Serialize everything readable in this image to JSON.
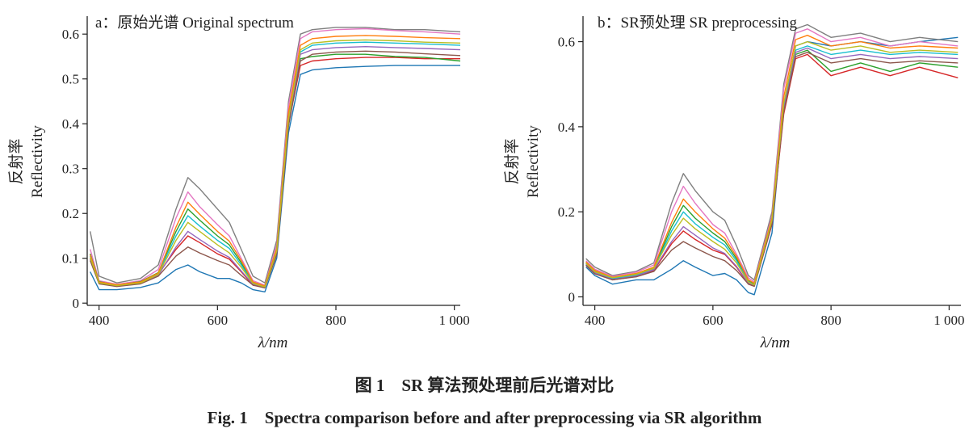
{
  "figure": {
    "caption_cn": "图 1　SR 算法预处理前后光谱对比",
    "caption_en": "Fig. 1　Spectra comparison before and after preprocessing via SR algorithm"
  },
  "chart_data": [
    {
      "type": "line",
      "title": "a：原始光谱 Original spectrum",
      "xlabel": "λ/nm",
      "ylabel_cn": "反射率",
      "ylabel_en": "Reflectivity",
      "xlim": [
        380,
        1010
      ],
      "ylim": [
        -0.005,
        0.64
      ],
      "xticks": [
        400,
        600,
        800,
        1000
      ],
      "xtick_labels": [
        "400",
        "600",
        "800",
        "1 000"
      ],
      "yticks": [
        0,
        0.1,
        0.2,
        0.3,
        0.4,
        0.5,
        0.6
      ],
      "ytick_labels": [
        "0",
        "0.1",
        "0.2",
        "0.3",
        "0.4",
        "0.5",
        "0.6"
      ],
      "grid": false,
      "series_count": 40,
      "x": [
        385,
        400,
        430,
        470,
        500,
        530,
        550,
        570,
        600,
        620,
        640,
        660,
        680,
        700,
        720,
        740,
        760,
        800,
        850,
        900,
        950,
        1010
      ],
      "series": [
        {
          "color": "#1f77b4",
          "values": [
            0.07,
            0.03,
            0.03,
            0.035,
            0.045,
            0.075,
            0.085,
            0.07,
            0.055,
            0.055,
            0.045,
            0.03,
            0.025,
            0.1,
            0.38,
            0.51,
            0.52,
            0.525,
            0.528,
            0.53,
            0.53,
            0.53
          ]
        },
        {
          "color": "#7f7f7f",
          "values": [
            0.16,
            0.06,
            0.045,
            0.055,
            0.085,
            0.21,
            0.28,
            0.255,
            0.21,
            0.18,
            0.12,
            0.06,
            0.045,
            0.14,
            0.45,
            0.6,
            0.61,
            0.615,
            0.615,
            0.61,
            0.61,
            0.605
          ]
        },
        {
          "color": "#e377c2",
          "values": [
            0.12,
            0.05,
            0.042,
            0.05,
            0.075,
            0.19,
            0.248,
            0.215,
            0.175,
            0.15,
            0.1,
            0.05,
            0.04,
            0.13,
            0.44,
            0.59,
            0.605,
            0.61,
            0.612,
            0.608,
            0.605,
            0.6
          ]
        },
        {
          "color": "#d62728",
          "values": [
            0.1,
            0.045,
            0.038,
            0.045,
            0.065,
            0.12,
            0.15,
            0.135,
            0.11,
            0.098,
            0.07,
            0.04,
            0.035,
            0.11,
            0.4,
            0.53,
            0.54,
            0.545,
            0.548,
            0.548,
            0.545,
            0.545
          ]
        },
        {
          "color": "#2ca02c",
          "values": [
            0.11,
            0.048,
            0.04,
            0.048,
            0.068,
            0.16,
            0.21,
            0.185,
            0.15,
            0.13,
            0.09,
            0.045,
            0.038,
            0.12,
            0.42,
            0.545,
            0.55,
            0.555,
            0.555,
            0.55,
            0.548,
            0.54
          ]
        },
        {
          "color": "#17becf",
          "values": [
            0.105,
            0.046,
            0.04,
            0.046,
            0.066,
            0.15,
            0.195,
            0.172,
            0.14,
            0.122,
            0.085,
            0.045,
            0.036,
            0.118,
            0.415,
            0.56,
            0.575,
            0.58,
            0.582,
            0.58,
            0.578,
            0.575
          ]
        },
        {
          "color": "#ff7f0e",
          "values": [
            0.108,
            0.047,
            0.041,
            0.047,
            0.067,
            0.17,
            0.225,
            0.198,
            0.16,
            0.138,
            0.095,
            0.047,
            0.038,
            0.122,
            0.425,
            0.575,
            0.59,
            0.595,
            0.597,
            0.595,
            0.592,
            0.59
          ]
        },
        {
          "color": "#9467bd",
          "values": [
            0.098,
            0.044,
            0.038,
            0.044,
            0.062,
            0.125,
            0.16,
            0.142,
            0.116,
            0.102,
            0.072,
            0.042,
            0.035,
            0.112,
            0.405,
            0.555,
            0.565,
            0.57,
            0.572,
            0.57,
            0.568,
            0.565
          ]
        },
        {
          "color": "#8c564b",
          "values": [
            0.095,
            0.043,
            0.037,
            0.043,
            0.06,
            0.105,
            0.125,
            0.112,
            0.095,
            0.085,
            0.062,
            0.04,
            0.034,
            0.108,
            0.395,
            0.54,
            0.555,
            0.56,
            0.562,
            0.56,
            0.556,
            0.552
          ]
        },
        {
          "color": "#bcbd22",
          "values": [
            0.102,
            0.045,
            0.039,
            0.045,
            0.064,
            0.14,
            0.18,
            0.16,
            0.13,
            0.112,
            0.08,
            0.044,
            0.036,
            0.116,
            0.41,
            0.565,
            0.58,
            0.585,
            0.587,
            0.585,
            0.582,
            0.58
          ]
        }
      ]
    },
    {
      "type": "line",
      "title": "b：SR预处理 SR preprocessing",
      "xlabel": "λ/nm",
      "ylabel_cn": "反射率",
      "ylabel_en": "Reflectivity",
      "xlim": [
        380,
        1020
      ],
      "ylim": [
        -0.02,
        0.66
      ],
      "xticks": [
        400,
        600,
        800,
        1000
      ],
      "xtick_labels": [
        "400",
        "600",
        "800",
        "1 000"
      ],
      "yticks": [
        0,
        0.2,
        0.4,
        0.6
      ],
      "ytick_labels": [
        "0",
        "0.2",
        "0.4",
        "0.6"
      ],
      "grid": false,
      "series_count": 40,
      "x": [
        385,
        400,
        430,
        470,
        500,
        530,
        550,
        570,
        600,
        620,
        640,
        660,
        670,
        700,
        720,
        740,
        760,
        800,
        850,
        900,
        950,
        1015
      ],
      "series": [
        {
          "color": "#1f77b4",
          "values": [
            0.07,
            0.05,
            0.03,
            0.04,
            0.04,
            0.065,
            0.085,
            0.07,
            0.05,
            0.055,
            0.04,
            0.01,
            0.005,
            0.15,
            0.45,
            0.59,
            0.6,
            0.59,
            0.6,
            0.59,
            0.6,
            0.61
          ]
        },
        {
          "color": "#7f7f7f",
          "values": [
            0.09,
            0.07,
            0.05,
            0.06,
            0.08,
            0.22,
            0.29,
            0.25,
            0.2,
            0.18,
            0.12,
            0.05,
            0.04,
            0.2,
            0.5,
            0.63,
            0.64,
            0.61,
            0.62,
            0.6,
            0.61,
            0.6
          ]
        },
        {
          "color": "#e377c2",
          "values": [
            0.085,
            0.065,
            0.048,
            0.058,
            0.075,
            0.2,
            0.26,
            0.22,
            0.17,
            0.15,
            0.1,
            0.045,
            0.035,
            0.19,
            0.49,
            0.62,
            0.63,
            0.6,
            0.61,
            0.59,
            0.6,
            0.59
          ]
        },
        {
          "color": "#d62728",
          "values": [
            0.075,
            0.055,
            0.04,
            0.048,
            0.062,
            0.125,
            0.155,
            0.135,
            0.11,
            0.1,
            0.07,
            0.03,
            0.025,
            0.17,
            0.43,
            0.56,
            0.57,
            0.52,
            0.54,
            0.52,
            0.54,
            0.515
          ]
        },
        {
          "color": "#2ca02c",
          "values": [
            0.08,
            0.06,
            0.044,
            0.052,
            0.068,
            0.165,
            0.215,
            0.185,
            0.15,
            0.13,
            0.09,
            0.038,
            0.03,
            0.18,
            0.44,
            0.57,
            0.58,
            0.53,
            0.55,
            0.53,
            0.55,
            0.54
          ]
        },
        {
          "color": "#17becf",
          "values": [
            0.078,
            0.058,
            0.043,
            0.05,
            0.066,
            0.155,
            0.2,
            0.172,
            0.14,
            0.122,
            0.085,
            0.036,
            0.028,
            0.178,
            0.445,
            0.58,
            0.59,
            0.57,
            0.58,
            0.57,
            0.575,
            0.57
          ]
        },
        {
          "color": "#ff7f0e",
          "values": [
            0.082,
            0.062,
            0.046,
            0.055,
            0.07,
            0.175,
            0.23,
            0.2,
            0.16,
            0.138,
            0.095,
            0.04,
            0.032,
            0.185,
            0.47,
            0.605,
            0.615,
            0.59,
            0.6,
            0.585,
            0.59,
            0.585
          ]
        },
        {
          "color": "#9467bd",
          "values": [
            0.076,
            0.056,
            0.041,
            0.049,
            0.064,
            0.13,
            0.165,
            0.145,
            0.115,
            0.102,
            0.072,
            0.032,
            0.026,
            0.175,
            0.44,
            0.575,
            0.585,
            0.56,
            0.57,
            0.56,
            0.565,
            0.56
          ]
        },
        {
          "color": "#8c564b",
          "values": [
            0.074,
            0.054,
            0.04,
            0.047,
            0.06,
            0.11,
            0.13,
            0.115,
            0.095,
            0.085,
            0.062,
            0.03,
            0.025,
            0.172,
            0.435,
            0.565,
            0.575,
            0.55,
            0.56,
            0.55,
            0.555,
            0.55
          ]
        },
        {
          "color": "#bcbd22",
          "values": [
            0.079,
            0.059,
            0.045,
            0.053,
            0.067,
            0.145,
            0.185,
            0.16,
            0.13,
            0.112,
            0.08,
            0.035,
            0.028,
            0.18,
            0.455,
            0.59,
            0.6,
            0.58,
            0.59,
            0.575,
            0.58,
            0.575
          ]
        }
      ]
    }
  ]
}
